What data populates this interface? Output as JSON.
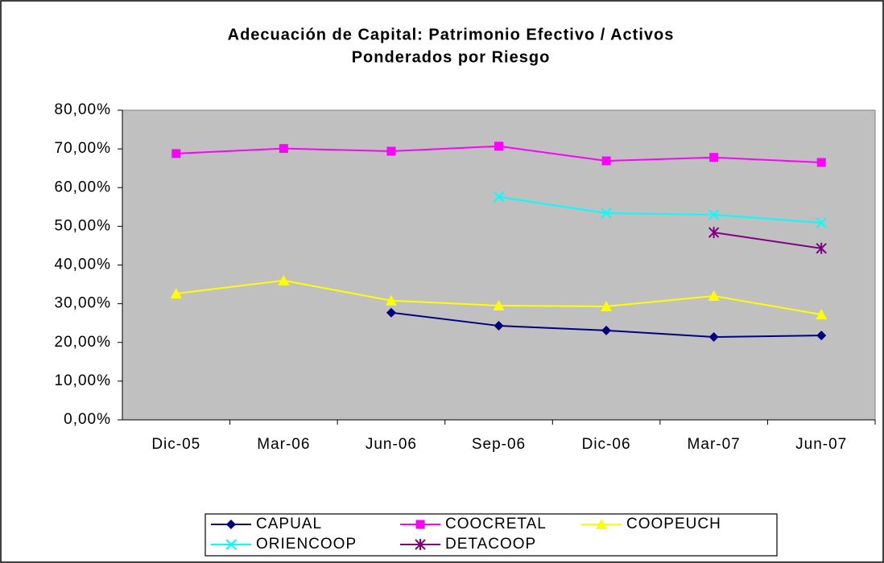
{
  "chart_data": {
    "type": "line",
    "title": [
      "Adecuación de Capital: Patrimonio Efectivo / Activos",
      "Ponderados por Riesgo"
    ],
    "categories": [
      "Dic-05",
      "Mar-06",
      "Jun-06",
      "Sep-06",
      "Dic-06",
      "Mar-07",
      "Jun-07"
    ],
    "series": [
      {
        "name": "CAPUAL",
        "color": "#000080",
        "marker": "diamond",
        "values": [
          null,
          null,
          27.7,
          24.3,
          23.1,
          21.4,
          21.8
        ]
      },
      {
        "name": "COOCRETAL",
        "color": "#ff00ff",
        "marker": "square",
        "values": [
          68.8,
          70.1,
          69.4,
          70.7,
          66.9,
          67.8,
          66.5
        ]
      },
      {
        "name": "COOPEUCH",
        "color": "#ffff00",
        "marker": "triangle",
        "values": [
          32.6,
          36.0,
          30.8,
          29.5,
          29.3,
          32.0,
          27.2
        ]
      },
      {
        "name": "ORIENCOOP",
        "color": "#00ffff",
        "marker": "x",
        "values": [
          null,
          null,
          null,
          57.6,
          53.4,
          53.0,
          50.9
        ]
      },
      {
        "name": "DETACOOP",
        "color": "#800080",
        "marker": "star",
        "values": [
          null,
          null,
          null,
          null,
          null,
          48.4,
          44.3
        ]
      }
    ],
    "ylim": [
      0,
      80
    ],
    "yticks": [
      {
        "value": 0,
        "label": "0,00%"
      },
      {
        "value": 10,
        "label": "10,00%"
      },
      {
        "value": 20,
        "label": "20,00%"
      },
      {
        "value": 30,
        "label": "30,00%"
      },
      {
        "value": 40,
        "label": "40,00%"
      },
      {
        "value": 50,
        "label": "50,00%"
      },
      {
        "value": 60,
        "label": "60,00%"
      },
      {
        "value": 70,
        "label": "70,00%"
      },
      {
        "value": 80,
        "label": "80,00%"
      }
    ],
    "plot_background": "#c0c0c0",
    "legend": "bottom"
  }
}
